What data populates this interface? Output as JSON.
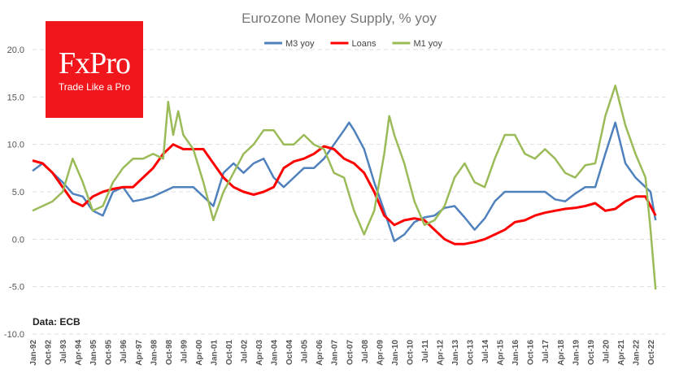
{
  "chart_data": {
    "type": "line",
    "title": "Eurozone  Money Supply, % yoy",
    "ylim": [
      -10,
      20
    ],
    "yticks": [
      "20.0",
      "15.0",
      "10.0",
      "5.0",
      "0.0",
      "-5.0",
      "-10.0"
    ],
    "xticks": [
      "Jan-92",
      "Oct-92",
      "Jul-93",
      "Apr-94",
      "Jan-95",
      "Oct-95",
      "Jul-96",
      "Apr-97",
      "Jan-98",
      "Oct-98",
      "Jul-99",
      "Apr-00",
      "Jan-01",
      "Oct-01",
      "Jul-02",
      "Apr-03",
      "Jan-04",
      "Oct-04",
      "Jul-05",
      "Apr-06",
      "Jan-07",
      "Oct-07",
      "Jul-08",
      "Apr-09",
      "Jan-10",
      "Oct-10",
      "Jul-11",
      "Apr-12",
      "Jan-13",
      "Oct-13",
      "Jul-14",
      "Apr-15",
      "Jan-16",
      "Oct-16",
      "Jul-17",
      "Apr-18",
      "Jan-19",
      "Oct-19",
      "Jul-20",
      "Apr-21",
      "Jan-22",
      "Oct-22"
    ],
    "grid": true,
    "legend": "top",
    "series": [
      {
        "name": "M3 yoy",
        "color": "#4f81bd",
        "x": [
          "1992-01",
          "1992-07",
          "1993-01",
          "1993-07",
          "1994-01",
          "1994-07",
          "1995-01",
          "1995-07",
          "1996-01",
          "1996-07",
          "1997-01",
          "1997-07",
          "1998-01",
          "1998-07",
          "1999-01",
          "1999-07",
          "2000-01",
          "2000-07",
          "2001-01",
          "2001-07",
          "2002-01",
          "2002-07",
          "2003-01",
          "2003-07",
          "2004-01",
          "2004-07",
          "2005-01",
          "2005-07",
          "2006-01",
          "2006-07",
          "2007-01",
          "2007-07",
          "2007-10",
          "2008-01",
          "2008-07",
          "2009-01",
          "2009-07",
          "2010-01",
          "2010-07",
          "2011-01",
          "2011-07",
          "2012-01",
          "2012-07",
          "2013-01",
          "2013-07",
          "2014-01",
          "2014-07",
          "2015-01",
          "2015-07",
          "2016-01",
          "2016-07",
          "2017-01",
          "2017-07",
          "2018-01",
          "2018-07",
          "2019-01",
          "2019-07",
          "2020-01",
          "2020-07",
          "2021-01",
          "2021-07",
          "2022-01",
          "2022-07",
          "2022-10",
          "2023-01"
        ],
        "values": [
          7.2,
          8,
          7,
          6,
          4.8,
          4.5,
          3,
          2.5,
          5,
          5.5,
          4,
          4.2,
          4.5,
          5,
          5.5,
          5.5,
          5.5,
          4.5,
          3.5,
          7,
          8,
          7,
          8,
          8.5,
          6.5,
          5.5,
          6.5,
          7.5,
          7.5,
          8.5,
          10,
          11.5,
          12.3,
          11.5,
          9.5,
          6,
          3,
          -0.2,
          0.5,
          1.8,
          2.3,
          2.5,
          3.3,
          3.5,
          2.3,
          1,
          2.2,
          4,
          5,
          5,
          5,
          5,
          5,
          4.2,
          4,
          4.8,
          5.5,
          5.5,
          9,
          12.3,
          8,
          6.5,
          5.5,
          5,
          2
        ]
      },
      {
        "name": "Loans",
        "color": "#ff0000",
        "x": [
          "1992-01",
          "1992-07",
          "1993-01",
          "1993-07",
          "1994-01",
          "1994-07",
          "1995-01",
          "1995-07",
          "1996-01",
          "1996-07",
          "1997-01",
          "1997-07",
          "1998-01",
          "1998-07",
          "1999-01",
          "1999-07",
          "2000-01",
          "2000-07",
          "2001-01",
          "2001-07",
          "2002-01",
          "2002-07",
          "2003-01",
          "2003-07",
          "2004-01",
          "2004-07",
          "2005-01",
          "2005-07",
          "2006-01",
          "2006-07",
          "2007-01",
          "2007-07",
          "2008-01",
          "2008-07",
          "2009-01",
          "2009-07",
          "2010-01",
          "2010-07",
          "2011-01",
          "2011-07",
          "2012-01",
          "2012-07",
          "2013-01",
          "2013-07",
          "2014-01",
          "2014-07",
          "2015-01",
          "2015-07",
          "2016-01",
          "2016-07",
          "2017-01",
          "2017-07",
          "2018-01",
          "2018-07",
          "2019-01",
          "2019-07",
          "2020-01",
          "2020-07",
          "2021-01",
          "2021-07",
          "2022-01",
          "2022-07",
          "2022-10",
          "2023-01"
        ],
        "values": [
          8.3,
          8,
          7,
          5.5,
          4,
          3.5,
          4.5,
          5,
          5.3,
          5.5,
          5.5,
          6.5,
          7.5,
          9,
          10,
          9.5,
          9.5,
          9.5,
          8,
          6.5,
          5.5,
          5,
          4.7,
          5,
          5.5,
          7.5,
          8.2,
          8.5,
          9,
          9.8,
          9.5,
          8.5,
          8,
          7,
          5,
          2.5,
          1.5,
          2,
          2.2,
          2,
          1,
          0,
          -0.5,
          -0.5,
          -0.3,
          0,
          0.5,
          1,
          1.8,
          2,
          2.5,
          2.8,
          3,
          3.2,
          3.3,
          3.5,
          3.8,
          3,
          3.2,
          4,
          4.5,
          4.5,
          3.5,
          2.5
        ]
      },
      {
        "name": "M1 yoy",
        "color": "#9bbb59",
        "x": [
          "1992-01",
          "1992-07",
          "1993-01",
          "1993-07",
          "1994-01",
          "1994-07",
          "1995-01",
          "1995-07",
          "1996-01",
          "1996-07",
          "1997-01",
          "1997-07",
          "1998-01",
          "1998-07",
          "1998-10",
          "1999-01",
          "1999-04",
          "1999-07",
          "2000-01",
          "2000-07",
          "2001-01",
          "2001-07",
          "2002-01",
          "2002-07",
          "2003-01",
          "2003-07",
          "2004-01",
          "2004-07",
          "2005-01",
          "2005-07",
          "2006-01",
          "2006-07",
          "2007-01",
          "2007-07",
          "2008-01",
          "2008-07",
          "2009-01",
          "2009-07",
          "2009-10",
          "2010-01",
          "2010-07",
          "2011-01",
          "2011-07",
          "2012-01",
          "2012-07",
          "2013-01",
          "2013-07",
          "2014-01",
          "2014-07",
          "2015-01",
          "2015-07",
          "2016-01",
          "2016-07",
          "2017-01",
          "2017-07",
          "2018-01",
          "2018-07",
          "2019-01",
          "2019-07",
          "2020-01",
          "2020-07",
          "2021-01",
          "2021-07",
          "2022-01",
          "2022-07",
          "2022-10",
          "2023-01"
        ],
        "values": [
          3,
          3.5,
          4,
          5,
          8.5,
          6,
          3,
          3.5,
          6,
          7.5,
          8.5,
          8.5,
          9,
          8.5,
          14.5,
          11,
          13.5,
          11,
          9.5,
          6,
          2,
          5,
          7,
          9,
          10,
          11.5,
          11.5,
          10,
          10,
          11,
          10,
          9.5,
          7,
          6.5,
          3,
          0.5,
          3,
          9,
          13,
          11,
          8,
          4,
          1.5,
          2,
          3.5,
          6.5,
          8,
          6,
          5.5,
          8.5,
          11,
          11,
          9,
          8.5,
          9.5,
          8.5,
          7,
          6.5,
          7.8,
          8,
          13,
          16.2,
          12,
          9,
          6.5,
          1,
          -5.3
        ]
      }
    ]
  },
  "logo": {
    "brand": "FxPro",
    "tagline": "Trade Like a Pro"
  },
  "source": "Data: ECB"
}
